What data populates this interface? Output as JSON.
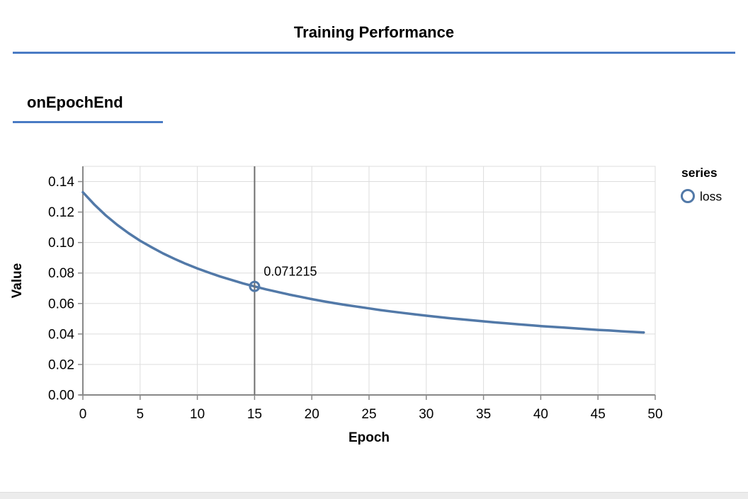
{
  "page": {
    "title": "Training Performance",
    "section_heading": "onEpochEnd"
  },
  "colors": {
    "accent": "#4a7bc4",
    "line": "#5279a8",
    "grid": "#dddddd",
    "axis": "#888888",
    "hover_rule": "#6e6e6e",
    "text": "#000000",
    "footer_strip": "#ececec"
  },
  "chart_data": {
    "type": "line",
    "title": "onEpochEnd",
    "xlabel": "Epoch",
    "ylabel": "Value",
    "legend_title": "series",
    "legend_position": "right",
    "grid": true,
    "xlim": [
      0,
      50
    ],
    "ylim": [
      0,
      0.15
    ],
    "x_ticks": [
      0,
      5,
      10,
      15,
      20,
      25,
      30,
      35,
      40,
      45,
      50
    ],
    "x_tick_labels": [
      "0",
      "5",
      "10",
      "15",
      "20",
      "25",
      "30",
      "35",
      "40",
      "45",
      "50"
    ],
    "y_ticks": [
      0,
      0.02,
      0.04,
      0.06,
      0.08,
      0.1,
      0.12,
      0.14
    ],
    "y_tick_labels": [
      "0.00",
      "0.02",
      "0.04",
      "0.06",
      "0.08",
      "0.10",
      "0.12",
      "0.14"
    ],
    "series": [
      {
        "name": "loss",
        "color": "#5279a8",
        "marker": "open-circle",
        "x": [
          0,
          1,
          2,
          3,
          4,
          5,
          6,
          7,
          8,
          9,
          10,
          11,
          12,
          13,
          14,
          15,
          16,
          17,
          18,
          19,
          20,
          21,
          22,
          23,
          24,
          25,
          26,
          27,
          28,
          29,
          30,
          31,
          32,
          33,
          34,
          35,
          36,
          37,
          38,
          39,
          40,
          41,
          42,
          43,
          44,
          45,
          46,
          47,
          48,
          49
        ],
        "values": [
          0.133,
          0.1249,
          0.1178,
          0.1116,
          0.1061,
          0.1012,
          0.0969,
          0.0929,
          0.0893,
          0.086,
          0.083,
          0.0803,
          0.0777,
          0.0754,
          0.0732,
          0.071215,
          0.0693,
          0.0676,
          0.0659,
          0.0644,
          0.0629,
          0.0615,
          0.0602,
          0.059,
          0.0579,
          0.0568,
          0.0557,
          0.0547,
          0.0538,
          0.0529,
          0.052,
          0.0512,
          0.0504,
          0.0497,
          0.049,
          0.0483,
          0.0476,
          0.047,
          0.0464,
          0.0458,
          0.0452,
          0.0447,
          0.0442,
          0.0437,
          0.0432,
          0.0427,
          0.0423,
          0.0418,
          0.0414,
          0.041
        ]
      }
    ],
    "highlight": {
      "x": 15,
      "y": 0.071215,
      "label": "0.071215"
    }
  }
}
